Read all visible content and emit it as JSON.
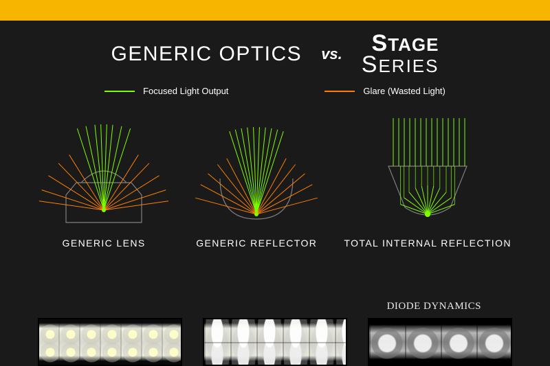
{
  "colors": {
    "accent_bar": "#f7b500",
    "background": "#1a1a1a",
    "text": "#ffffff",
    "focused_ray": "#7fff00",
    "glare_ray": "#ff7f00",
    "optic_outline": "#808080"
  },
  "header": {
    "left": "GENERIC OPTICS",
    "vs": "vs.",
    "brand_top": "STAGE",
    "brand_bottom": "SERIES"
  },
  "legend": {
    "focused": "Focused Light Output",
    "glare": "Glare (Wasted Light)"
  },
  "diagrams": {
    "generic_lens": {
      "label": "GENERIC LENS",
      "focused_angles_deg": [
        -18,
        -12,
        -6,
        -2,
        2,
        6,
        12,
        18
      ],
      "glare_angles_deg": [
        -82,
        -72,
        -58,
        -44,
        -32,
        32,
        44,
        58,
        72,
        82
      ],
      "ray_length": 95
    },
    "generic_reflector": {
      "label": "GENERIC REFLECTOR",
      "focused_angles_deg": [
        -18,
        -14,
        -10,
        -6,
        -2,
        2,
        6,
        10,
        14,
        18
      ],
      "glare_angles_deg": [
        -75,
        -62,
        -50,
        -38,
        -28,
        28,
        38,
        50,
        62,
        75
      ],
      "ray_length": 92
    },
    "tir": {
      "label": "TOTAL INTERNAL REFLECTION",
      "vertical_x_offsets": [
        -50,
        -42,
        -34,
        -26,
        -18,
        -10,
        -2,
        6,
        14,
        22,
        30,
        38,
        46,
        54
      ],
      "fan_angles_deg": [
        -70,
        -55,
        -40,
        -25,
        -12,
        0,
        12,
        25,
        40,
        55,
        70
      ],
      "vertical_height": 120,
      "fan_length": 42
    }
  },
  "brand_label": "DIODE DYNAMICS",
  "typography": {
    "header_left_fontsize": 30,
    "vs_fontsize": 22,
    "brand_fontsize": 26,
    "legend_fontsize": 13,
    "diagram_label_fontsize": 14,
    "brand_label_fontsize": 15
  }
}
